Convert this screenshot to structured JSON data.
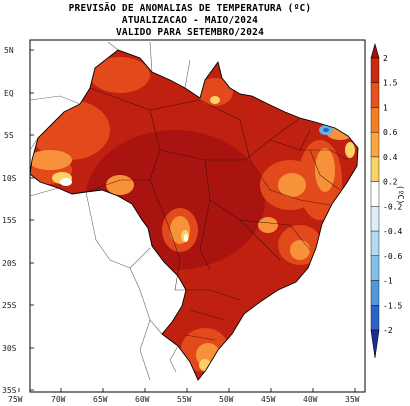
{
  "title": {
    "line1": "PREVISÃO DE ANOMALIAS DE TEMPERATURA (ºC)",
    "line2": "ATUALIZACAO - MAIO/2024",
    "line3": "VALIDO PARA SETEMBRO/2024"
  },
  "axes": {
    "lat_labels": [
      "5N",
      "EQ",
      "5S",
      "10S",
      "15S",
      "20S",
      "25S",
      "30S",
      "35S"
    ],
    "lon_labels": [
      "75W",
      "70W",
      "65W",
      "60W",
      "55W",
      "50W",
      "45W",
      "40W",
      "35W"
    ]
  },
  "colorbar": {
    "unit": "(ºC)",
    "levels": [
      "2",
      "1.5",
      "1",
      "0.6",
      "0.4",
      "0.2",
      "-0.2",
      "-0.4",
      "-0.6",
      "-1",
      "-1.5",
      "-2"
    ],
    "colors": [
      "#a50f15",
      "#cb2a10",
      "#e8501c",
      "#f47d23",
      "#f9a640",
      "#fbd266",
      "#ffffff",
      "#dceefa",
      "#b2daf4",
      "#82c0ec",
      "#4f98dd",
      "#2a62c6",
      "#1b2f9a"
    ]
  }
}
